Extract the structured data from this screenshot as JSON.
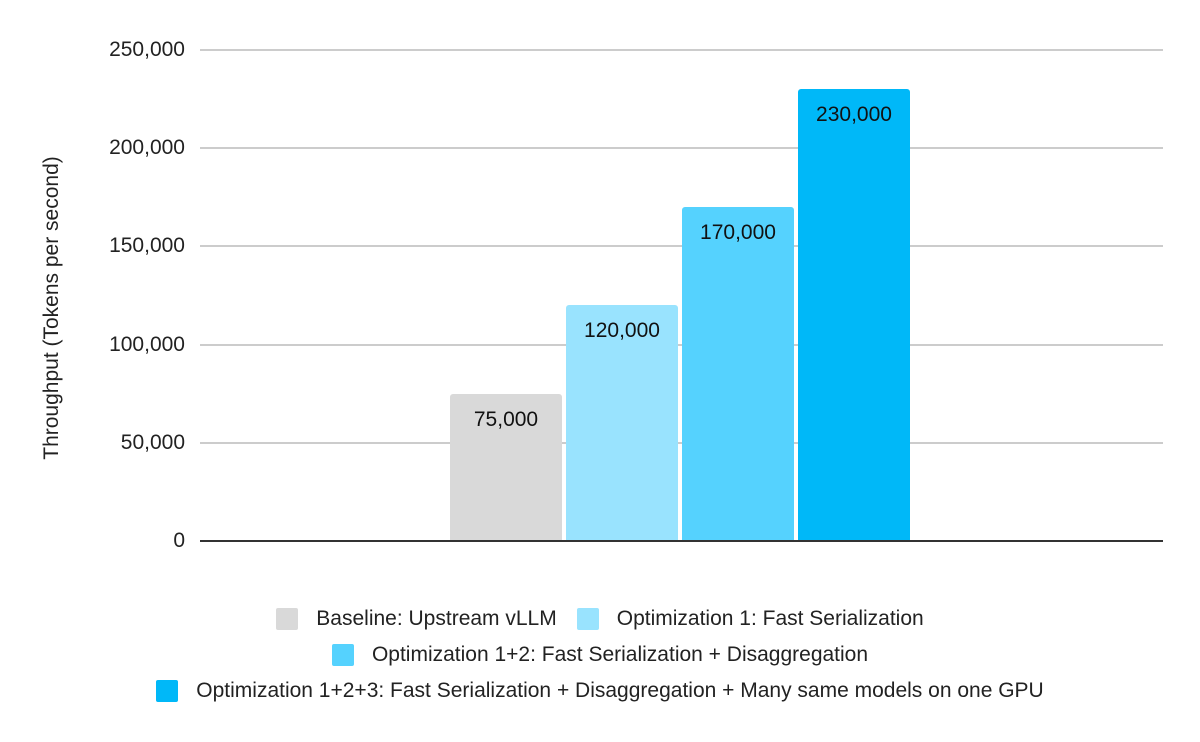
{
  "chart_data": {
    "type": "bar",
    "title": "",
    "xlabel": "",
    "ylabel": "Throughput (Tokens per second)",
    "ylim": [
      0,
      250000
    ],
    "yticks": [
      0,
      50000,
      100000,
      150000,
      200000,
      250000
    ],
    "ytick_labels": [
      "0",
      "50,000",
      "100,000",
      "150,000",
      "200,000",
      "250,000"
    ],
    "grid": true,
    "legend_position": "bottom",
    "categories": [
      ""
    ],
    "series": [
      {
        "name": "Baseline: Upstream vLLM",
        "values": [
          75000
        ],
        "label": "75,000",
        "color": "#d9d9d9"
      },
      {
        "name": "Optimization 1: Fast Serialization",
        "values": [
          120000
        ],
        "label": "120,000",
        "color": "#99e3fe"
      },
      {
        "name": "Optimization 1+2: Fast Serialization + Disaggregation",
        "values": [
          170000
        ],
        "label": "170,000",
        "color": "#55d2fe"
      },
      {
        "name": "Optimization 1+2+3: Fast Serialization + Disaggregation + Many same models on one GPU",
        "values": [
          230000
        ],
        "label": "230,000",
        "color": "#00b8f8"
      }
    ]
  }
}
